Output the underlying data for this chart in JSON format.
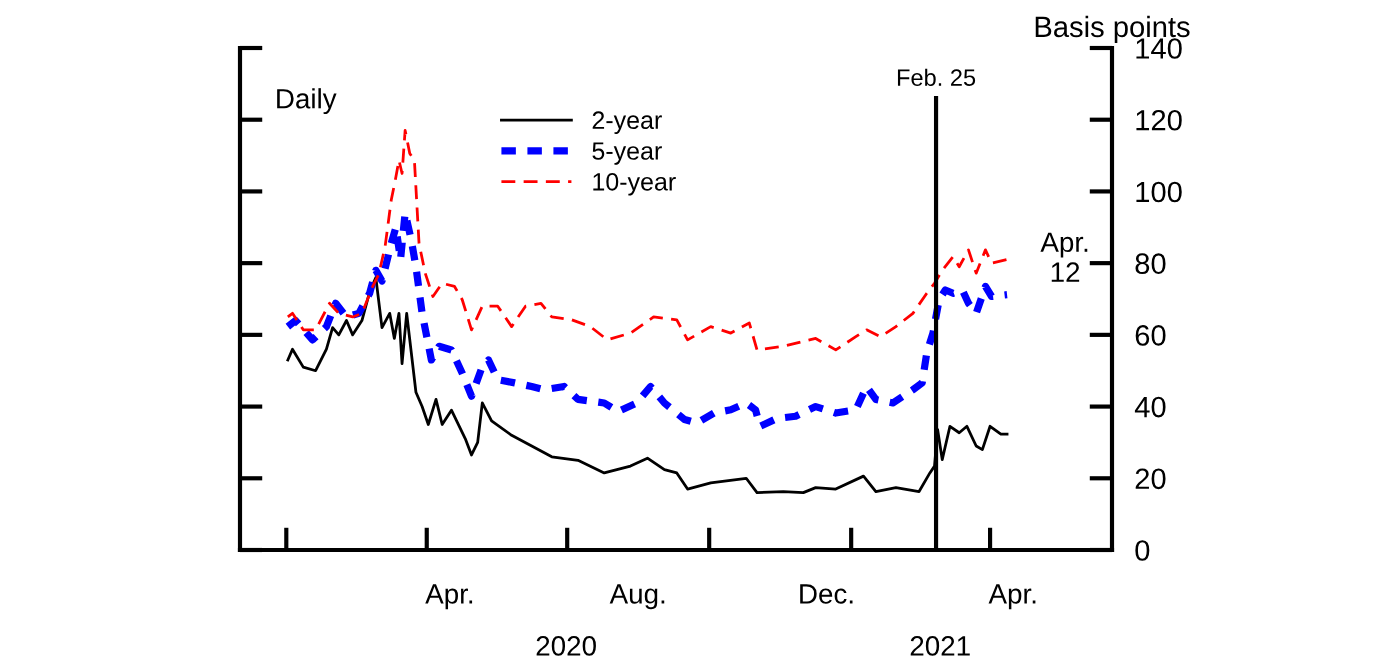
{
  "chart_data": {
    "type": "line",
    "ylabel": "Basis points",
    "xlim": [
      "2019-12-02",
      "2021-06-19"
    ],
    "ylim": [
      0,
      140
    ],
    "yticks": [
      0,
      20,
      40,
      60,
      80,
      100,
      120,
      140
    ],
    "xticks": [
      {
        "value": "2020-01-01",
        "label": null
      },
      {
        "value": "2020-04-01",
        "label": null
      },
      {
        "value": "2020-07-01",
        "label": null
      },
      {
        "value": "2020-10-01",
        "label": null
      },
      {
        "value": "2021-01-01",
        "label": null
      },
      {
        "value": "2021-04-01",
        "label": null
      },
      {
        "value": "2020-04-16",
        "label": "Apr."
      },
      {
        "value": "2020-08-16",
        "label": "Aug."
      },
      {
        "value": "2020-12-16",
        "label": "Dec."
      },
      {
        "value": "2021-04-16",
        "label": "Apr."
      }
    ],
    "grid": false,
    "legend": "top",
    "marker": "none",
    "annotations": [
      "Daily",
      "2020",
      "2021",
      {
        "text": "Apr.\n12",
        "x": "2021-04-12",
        "y": 81
      }
    ],
    "ref_lines": [
      {
        "axis": "x",
        "value": "2021-02-25",
        "label": "Feb. 25",
        "color": "#000000",
        "line_style": "solid"
      }
    ],
    "series": [
      {
        "name": "2-year",
        "color": "#000000",
        "line_style": "solid",
        "x": [
          "2020-01-02",
          "2020-01-05",
          "2020-01-12",
          "2020-01-20",
          "2020-01-27",
          "2020-01-31",
          "2020-02-04",
          "2020-02-09",
          "2020-02-13",
          "2020-02-19",
          "2020-02-24",
          "2020-02-28",
          "2020-03-03",
          "2020-03-08",
          "2020-03-11",
          "2020-03-14",
          "2020-03-16",
          "2020-03-19",
          "2020-03-25",
          "2020-03-29",
          "2020-04-02",
          "2020-04-07",
          "2020-04-11",
          "2020-04-17",
          "2020-04-26",
          "2020-04-30",
          "2020-05-04",
          "2020-05-07",
          "2020-05-13",
          "2020-05-26",
          "2020-06-08",
          "2020-06-21",
          "2020-07-08",
          "2020-07-25",
          "2020-08-11",
          "2020-08-22",
          "2020-09-02",
          "2020-09-10",
          "2020-09-17",
          "2020-10-02",
          "2020-10-25",
          "2020-11-01",
          "2020-11-18",
          "2020-12-01",
          "2020-12-09",
          "2020-12-22",
          "2021-01-09",
          "2021-01-17",
          "2021-01-30",
          "2021-02-14",
          "2021-02-21",
          "2021-02-24",
          "2021-02-26",
          "2021-03-01",
          "2021-03-06",
          "2021-03-12",
          "2021-03-17",
          "2021-03-23",
          "2021-03-27",
          "2021-04-01",
          "2021-04-08",
          "2021-04-12"
        ],
        "values": [
          53,
          56,
          51,
          50,
          56,
          62,
          60,
          64,
          60,
          64,
          72,
          76,
          62,
          66,
          59,
          66,
          52,
          66,
          44,
          40,
          35,
          42,
          35,
          39,
          31,
          26.5,
          30,
          41,
          36,
          32,
          29,
          26,
          25,
          21.5,
          23.4,
          25.6,
          22.4,
          21.5,
          17,
          18.7,
          20,
          16,
          16.3,
          16,
          17.4,
          17,
          20.6,
          16.3,
          17.4,
          16.3,
          21.5,
          23.4,
          33.6,
          25.2,
          34.5,
          32.7,
          34.5,
          29,
          28,
          34.5,
          32.3,
          32.3
        ]
      },
      {
        "name": "5-year",
        "color": "#0000ff",
        "line_style": "dashed",
        "x": [
          "2020-01-02",
          "2020-01-07",
          "2020-01-18",
          "2020-01-27",
          "2020-02-02",
          "2020-02-09",
          "2020-02-17",
          "2020-02-24",
          "2020-02-28",
          "2020-03-03",
          "2020-03-09",
          "2020-03-12",
          "2020-03-15",
          "2020-03-18",
          "2020-03-22",
          "2020-03-25",
          "2020-03-29",
          "2020-04-04",
          "2020-04-09",
          "2020-04-17",
          "2020-04-24",
          "2020-04-30",
          "2020-05-07",
          "2020-05-11",
          "2020-05-17",
          "2020-05-28",
          "2020-06-08",
          "2020-06-16",
          "2020-06-29",
          "2020-07-08",
          "2020-07-25",
          "2020-08-03",
          "2020-08-15",
          "2020-08-24",
          "2020-09-02",
          "2020-09-15",
          "2020-09-23",
          "2020-10-04",
          "2020-10-15",
          "2020-10-25",
          "2020-10-31",
          "2020-11-03",
          "2020-11-14",
          "2020-11-26",
          "2020-12-09",
          "2020-12-22",
          "2021-01-04",
          "2021-01-11",
          "2021-01-17",
          "2021-01-28",
          "2021-02-10",
          "2021-02-16",
          "2021-02-19",
          "2021-02-23",
          "2021-02-27",
          "2021-03-03",
          "2021-03-08",
          "2021-03-14",
          "2021-03-18",
          "2021-03-23",
          "2021-03-29",
          "2021-04-02",
          "2021-04-12"
        ],
        "values": [
          62.3,
          64,
          58.6,
          62.3,
          68.8,
          65,
          66,
          71.6,
          78,
          75,
          85.5,
          90,
          81,
          94,
          86.4,
          79,
          66,
          53,
          56.8,
          55.8,
          49.3,
          42.9,
          51.2,
          53,
          47.5,
          46.6,
          45.6,
          44.7,
          45.6,
          42,
          41,
          38.6,
          41,
          45.6,
          41,
          36.4,
          35.4,
          38.2,
          39.1,
          41,
          39.1,
          34.5,
          36.7,
          37.3,
          40,
          38.2,
          39.1,
          45.6,
          42,
          41,
          44.7,
          46.6,
          55,
          60.5,
          69.8,
          72.5,
          71.6,
          72.5,
          68.8,
          66,
          73.5,
          70.7,
          71.2
        ]
      },
      {
        "name": "10-year",
        "color": "#ff0000",
        "line_style": "dashed",
        "x": [
          "2020-01-02",
          "2020-01-05",
          "2020-01-12",
          "2020-01-20",
          "2020-01-29",
          "2020-02-04",
          "2020-02-13",
          "2020-02-19",
          "2020-02-26",
          "2020-03-01",
          "2020-03-05",
          "2020-03-09",
          "2020-03-12",
          "2020-03-14",
          "2020-03-16",
          "2020-03-18",
          "2020-03-21",
          "2020-03-24",
          "2020-03-27",
          "2020-03-31",
          "2020-04-05",
          "2020-04-11",
          "2020-04-19",
          "2020-04-24",
          "2020-04-30",
          "2020-05-07",
          "2020-05-17",
          "2020-05-26",
          "2020-06-04",
          "2020-06-14",
          "2020-06-21",
          "2020-07-04",
          "2020-07-16",
          "2020-07-27",
          "2020-08-11",
          "2020-08-26",
          "2020-09-10",
          "2020-09-17",
          "2020-10-02",
          "2020-10-15",
          "2020-10-27",
          "2020-11-01",
          "2020-11-18",
          "2020-12-09",
          "2020-12-22",
          "2021-01-04",
          "2021-01-11",
          "2021-01-20",
          "2021-01-30",
          "2021-02-10",
          "2021-02-19",
          "2021-02-24",
          "2021-03-01",
          "2021-03-08",
          "2021-03-12",
          "2021-03-18",
          "2021-03-23",
          "2021-03-29",
          "2021-04-02",
          "2021-04-12"
        ],
        "values": [
          65,
          66,
          61.4,
          61.4,
          68.8,
          66,
          65,
          66,
          73.5,
          77,
          84.6,
          97.6,
          104,
          108.7,
          105,
          117,
          110.6,
          108.7,
          85.5,
          77.2,
          70.7,
          74.4,
          73.5,
          69.8,
          61.4,
          68,
          68,
          62.3,
          68,
          68.8,
          65,
          64.2,
          62.3,
          58.6,
          60.5,
          65,
          64.2,
          58.6,
          62.3,
          60.5,
          63.3,
          55.8,
          56.8,
          59,
          55.8,
          59.5,
          61.4,
          59.5,
          62.3,
          66,
          71.6,
          74.4,
          78,
          81.8,
          79,
          83.7,
          77.2,
          83.7,
          80,
          81
        ]
      }
    ]
  }
}
